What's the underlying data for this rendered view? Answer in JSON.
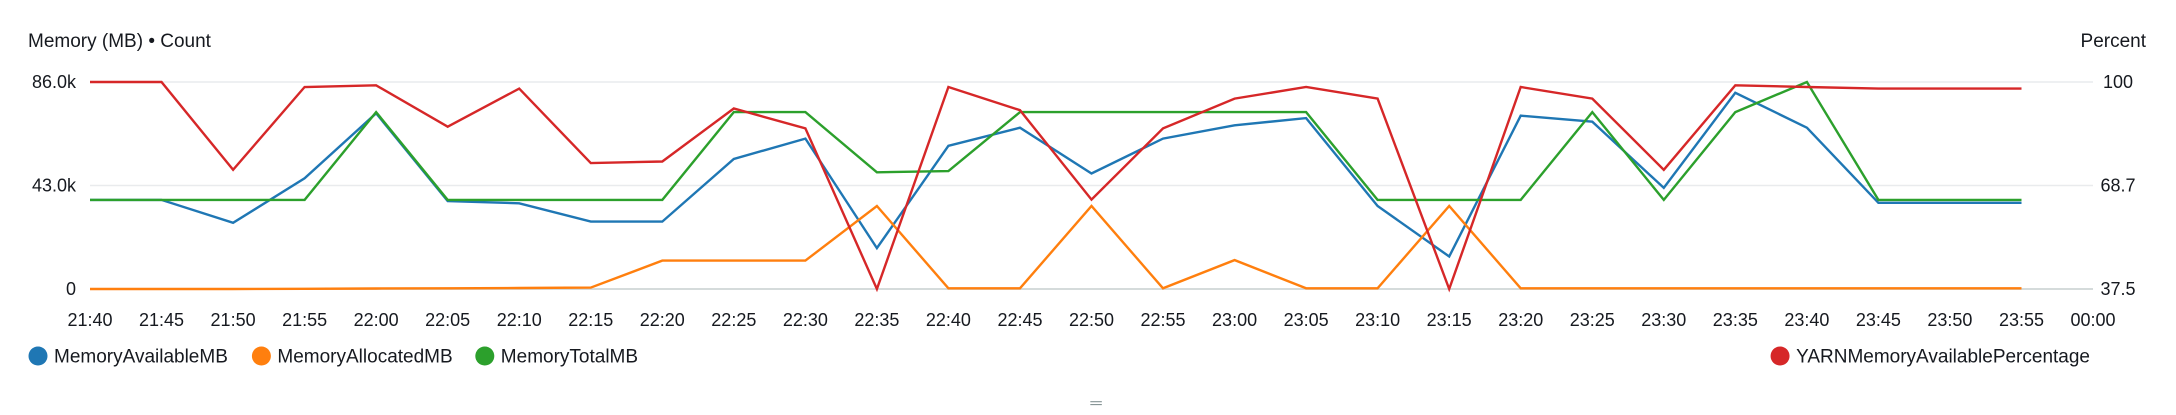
{
  "chart_data": {
    "type": "line",
    "left_axis_title": "Memory (MB) • Count",
    "right_axis_title": "Percent",
    "left_ticks": [
      {
        "value": 0,
        "label": "0"
      },
      {
        "value": 43000,
        "label": "43.0k"
      },
      {
        "value": 86000,
        "label": "86.0k"
      }
    ],
    "right_ticks": [
      {
        "value": 37.5,
        "label": "37.5"
      },
      {
        "value": 68.7,
        "label": "68.7"
      },
      {
        "value": 100,
        "label": "100"
      }
    ],
    "ylim_left": [
      0,
      86000
    ],
    "ylim_right": [
      37.5,
      100
    ],
    "x_labels": [
      "21:40",
      "21:45",
      "21:50",
      "21:55",
      "22:00",
      "22:05",
      "22:10",
      "22:15",
      "22:20",
      "22:25",
      "22:30",
      "22:35",
      "22:40",
      "22:45",
      "22:50",
      "22:55",
      "23:00",
      "23:05",
      "23:10",
      "23:15",
      "23:20",
      "23:25",
      "23:30",
      "23:35",
      "23:40",
      "23:45",
      "23:50",
      "23:55",
      "00:00"
    ],
    "x": [
      "21:40",
      "21:45",
      "21:50",
      "21:55",
      "22:00",
      "22:05",
      "22:10",
      "22:15",
      "22:20",
      "22:25",
      "22:30",
      "22:35",
      "22:40",
      "22:45",
      "22:50",
      "22:55",
      "23:00",
      "23:05",
      "23:10",
      "23:15",
      "23:20",
      "23:25",
      "23:30",
      "23:35",
      "23:40",
      "23:45",
      "23:50",
      "23:55"
    ],
    "grid": true,
    "legend_placement": "bottom",
    "series": [
      {
        "name": "MemoryAvailableMB",
        "color": "#1f77b4",
        "axis": "left",
        "values": [
          37000,
          37000,
          27500,
          46000,
          73000,
          36500,
          35600,
          28000,
          28000,
          54000,
          62500,
          17000,
          59500,
          67000,
          48000,
          62500,
          68000,
          71000,
          34500,
          13500,
          72000,
          69500,
          42000,
          81500,
          67000,
          35800,
          35800,
          35800
        ]
      },
      {
        "name": "MemoryAllocatedMB",
        "color": "#ff7f0e",
        "axis": "left",
        "values": [
          0,
          0,
          0,
          100,
          200,
          300,
          400,
          600,
          11800,
          11800,
          11800,
          34500,
          300,
          300,
          34500,
          300,
          12000,
          300,
          300,
          34500,
          300,
          300,
          300,
          300,
          300,
          300,
          300,
          300
        ]
      },
      {
        "name": "MemoryTotalMB",
        "color": "#2ca02c",
        "axis": "left",
        "values": [
          37000,
          37000,
          37000,
          37000,
          73500,
          37000,
          37000,
          37000,
          37000,
          73500,
          73500,
          48500,
          49000,
          73500,
          73500,
          73500,
          73500,
          73500,
          37000,
          37000,
          37000,
          73500,
          37000,
          73500,
          86000,
          37000,
          37000,
          37000
        ]
      },
      {
        "name": "YARNMemoryAvailablePercentage",
        "color": "#d62728",
        "axis": "right",
        "values": [
          100,
          100,
          73.5,
          98.5,
          99,
          86.5,
          98,
          75.5,
          76,
          92,
          86,
          37.5,
          98.5,
          91.5,
          64.5,
          86,
          95,
          98.5,
          95,
          37.5,
          98.5,
          95,
          73.5,
          99,
          98.5,
          98,
          98,
          98
        ]
      }
    ]
  },
  "resize_glyph": "═"
}
